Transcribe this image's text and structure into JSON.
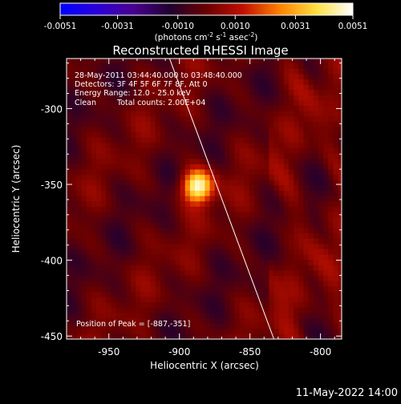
{
  "chart_data": {
    "type": "heatmap",
    "title": "Reconstructed RHESSI Image",
    "xlabel": "Heliocentric X (arcsec)",
    "ylabel": "Heliocentric Y (arcsec)",
    "xlim": [
      -980,
      -785
    ],
    "ylim": [
      -452,
      -267
    ],
    "x_ticks": [
      "-950",
      "-900",
      "-850",
      "-800"
    ],
    "x_tick_values": [
      -950,
      -900,
      -850,
      -800
    ],
    "y_ticks": [
      "-300",
      "-350",
      "-400",
      "-450"
    ],
    "y_tick_values": [
      -300,
      -350,
      -400,
      -450
    ],
    "colorbar": {
      "label_parts": [
        "(photons cm",
        "-2",
        " s",
        "-1",
        " asec",
        "-2",
        ")"
      ],
      "ticks": [
        "-0.0051",
        "-0.0031",
        "-0.0010",
        "0.0010",
        "0.0031",
        "0.0051"
      ],
      "tick_values": [
        -0.0051,
        -0.0031,
        -0.001,
        0.001,
        0.0031,
        0.0051
      ],
      "range": [
        -0.0051,
        0.0051
      ],
      "colors": [
        "#0000ff",
        "#2a00d8",
        "#4a0090",
        "#200030",
        "#6a0000",
        "#c01000",
        "#ff8000",
        "#ffe040",
        "#ffffff"
      ]
    },
    "annotations": {
      "time": "28-May-2011 03:44:40.000 to 03:48:40.000",
      "detectors": "Detectors: 3F 4F 5F 6F 7F 8F, Att 0",
      "energy": "Energy Range: 12.0 - 25.0 keV",
      "method": "Clean",
      "counts": "Total counts: 2.00E+04",
      "peak": "Position of Peak = [-887,-351]"
    },
    "source_peak": {
      "x": -887,
      "y": -351,
      "value": 0.0051
    },
    "limb_line": [
      [
        -907,
        -267
      ],
      [
        -833,
        -452
      ]
    ]
  },
  "footer_date": "11-May-2022 14:00"
}
